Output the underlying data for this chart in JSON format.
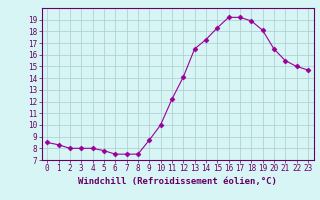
{
  "xlabel": "Windchill (Refroidissement éolien,°C)",
  "x": [
    0,
    1,
    2,
    3,
    4,
    5,
    6,
    7,
    8,
    9,
    10,
    11,
    12,
    13,
    14,
    15,
    16,
    17,
    18,
    19,
    20,
    21,
    22,
    23
  ],
  "y": [
    8.5,
    8.3,
    8.0,
    8.0,
    8.0,
    7.8,
    7.5,
    7.5,
    7.5,
    8.7,
    10.0,
    12.2,
    14.1,
    16.5,
    17.3,
    18.3,
    19.2,
    19.2,
    18.9,
    18.1,
    16.5,
    15.5,
    15.0,
    14.7
  ],
  "line_color": "#990099",
  "marker": "D",
  "marker_size": 2.5,
  "bg_color": "#d8f5f5",
  "grid_color": "#aacccc",
  "axis_color": "#660066",
  "ylim": [
    7,
    20
  ],
  "yticks": [
    7,
    8,
    9,
    10,
    11,
    12,
    13,
    14,
    15,
    16,
    17,
    18,
    19
  ],
  "xticks": [
    0,
    1,
    2,
    3,
    4,
    5,
    6,
    7,
    8,
    9,
    10,
    11,
    12,
    13,
    14,
    15,
    16,
    17,
    18,
    19,
    20,
    21,
    22,
    23
  ],
  "tick_fontsize": 5.5,
  "xlabel_fontsize": 6.5
}
